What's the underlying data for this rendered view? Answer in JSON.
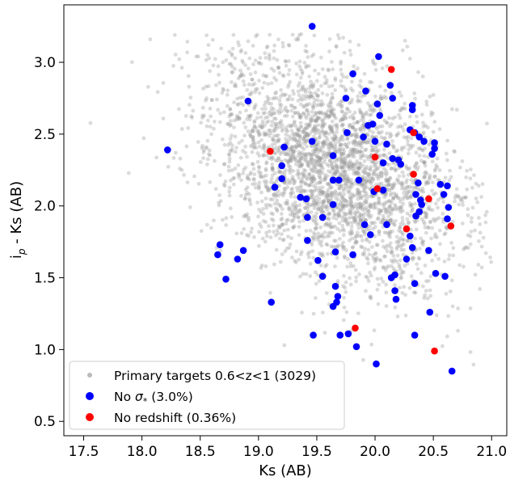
{
  "chart_data": {
    "type": "scatter",
    "title": "",
    "xlabel": "Ks (AB)",
    "ylabel_main": "i",
    "ylabel_sub": "p",
    "ylabel_rest": " - Ks (AB)",
    "xlim": [
      17.33,
      21.13
    ],
    "ylim": [
      0.4,
      3.4
    ],
    "xticks": [
      17.5,
      18.0,
      18.5,
      19.0,
      19.5,
      20.0,
      20.5,
      21.0
    ],
    "xtick_labels": [
      "17.5",
      "18.0",
      "18.5",
      "19.0",
      "19.5",
      "20.0",
      "20.5",
      "21.0"
    ],
    "yticks": [
      0.5,
      1.0,
      1.5,
      2.0,
      2.5,
      3.0
    ],
    "ytick_labels": [
      "0.5",
      "1.0",
      "1.5",
      "2.0",
      "2.5",
      "3.0"
    ],
    "grid": false,
    "legend_position": "lower-left",
    "series": [
      {
        "name": "Primary targets 0.6<z<1 (3029)",
        "color": "#999999",
        "marker": "circle",
        "alpha": 0.35,
        "count": 3029,
        "points": []
      },
      {
        "name_prefix": "No ",
        "name_symbol": "σ",
        "name_sub": "*",
        "name_suffix": " (3.0%)",
        "color": "#0000ff",
        "marker": "circle",
        "points": [
          [
            19.46,
            3.25
          ],
          [
            20.03,
            3.04
          ],
          [
            19.81,
            2.92
          ],
          [
            20.13,
            2.84
          ],
          [
            19.75,
            2.75
          ],
          [
            20.15,
            2.75
          ],
          [
            18.91,
            2.73
          ],
          [
            19.92,
            2.8
          ],
          [
            20.02,
            2.71
          ],
          [
            20.32,
            2.7
          ],
          [
            20.32,
            2.67
          ],
          [
            20.04,
            2.63
          ],
          [
            19.98,
            2.57
          ],
          [
            19.94,
            2.56
          ],
          [
            20.3,
            2.53
          ],
          [
            20.34,
            2.51
          ],
          [
            20.38,
            2.48
          ],
          [
            19.9,
            2.48
          ],
          [
            19.76,
            2.51
          ],
          [
            20.0,
            2.45
          ],
          [
            20.42,
            2.45
          ],
          [
            20.51,
            2.44
          ],
          [
            20.51,
            2.4
          ],
          [
            20.1,
            2.43
          ],
          [
            20.49,
            2.36
          ],
          [
            18.22,
            2.39
          ],
          [
            19.22,
            2.41
          ],
          [
            19.46,
            2.45
          ],
          [
            19.64,
            2.35
          ],
          [
            20.15,
            2.33
          ],
          [
            20.2,
            2.32
          ],
          [
            20.22,
            2.29
          ],
          [
            19.2,
            2.28
          ],
          [
            20.07,
            2.3
          ],
          [
            19.64,
            2.18
          ],
          [
            19.69,
            2.18
          ],
          [
            19.2,
            2.19
          ],
          [
            19.86,
            2.18
          ],
          [
            20.37,
            2.16
          ],
          [
            20.56,
            2.15
          ],
          [
            20.62,
            2.14
          ],
          [
            20.07,
            2.11
          ],
          [
            20.35,
            2.08
          ],
          [
            19.14,
            2.13
          ],
          [
            19.99,
            2.1
          ],
          [
            19.36,
            2.06
          ],
          [
            19.41,
            2.05
          ],
          [
            20.59,
            2.08
          ],
          [
            20.39,
            2.04
          ],
          [
            20.4,
            2.01
          ],
          [
            19.64,
            2.01
          ],
          [
            20.63,
            1.99
          ],
          [
            20.35,
            1.93
          ],
          [
            20.38,
            1.96
          ],
          [
            20.62,
            1.91
          ],
          [
            19.42,
            1.92
          ],
          [
            19.55,
            1.92
          ],
          [
            19.91,
            1.87
          ],
          [
            20.1,
            1.87
          ],
          [
            20.3,
            1.79
          ],
          [
            19.96,
            1.8
          ],
          [
            19.42,
            1.76
          ],
          [
            18.67,
            1.73
          ],
          [
            18.87,
            1.69
          ],
          [
            20.32,
            1.71
          ],
          [
            20.46,
            1.69
          ],
          [
            19.66,
            1.68
          ],
          [
            18.65,
            1.66
          ],
          [
            19.81,
            1.66
          ],
          [
            18.82,
            1.63
          ],
          [
            19.51,
            1.62
          ],
          [
            20.27,
            1.63
          ],
          [
            18.72,
            1.49
          ],
          [
            19.55,
            1.51
          ],
          [
            20.17,
            1.52
          ],
          [
            20.14,
            1.5
          ],
          [
            20.52,
            1.53
          ],
          [
            20.6,
            1.51
          ],
          [
            19.66,
            1.44
          ],
          [
            20.34,
            1.46
          ],
          [
            20.17,
            1.41
          ],
          [
            19.68,
            1.37
          ],
          [
            20.18,
            1.35
          ],
          [
            19.67,
            1.33
          ],
          [
            19.11,
            1.33
          ],
          [
            19.64,
            1.3
          ],
          [
            20.47,
            1.26
          ],
          [
            19.47,
            1.1
          ],
          [
            19.77,
            1.11
          ],
          [
            19.7,
            1.1
          ],
          [
            20.34,
            1.1
          ],
          [
            19.84,
            1.02
          ],
          [
            20.01,
            0.9
          ],
          [
            20.66,
            0.85
          ]
        ]
      },
      {
        "name": "No redshift (0.36%)",
        "color": "#ff0000",
        "marker": "circle",
        "points": [
          [
            20.14,
            2.95
          ],
          [
            20.33,
            2.51
          ],
          [
            19.1,
            2.38
          ],
          [
            20.0,
            2.34
          ],
          [
            20.33,
            2.22
          ],
          [
            20.02,
            2.12
          ],
          [
            20.46,
            2.05
          ],
          [
            20.27,
            1.84
          ],
          [
            20.65,
            1.86
          ],
          [
            19.83,
            1.15
          ],
          [
            20.51,
            0.99
          ]
        ]
      }
    ]
  }
}
